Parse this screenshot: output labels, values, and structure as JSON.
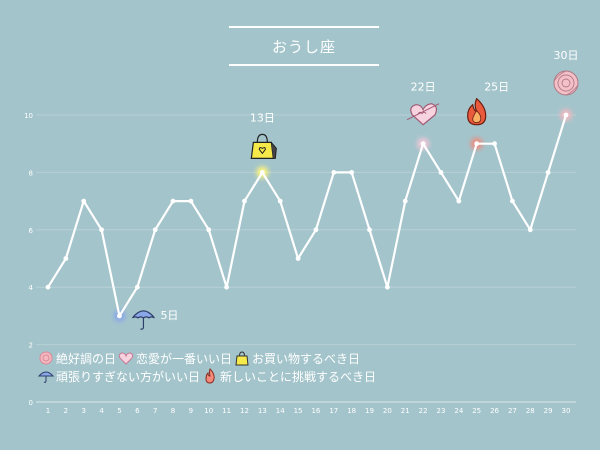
{
  "title": "おうし座",
  "chart_data": {
    "type": "line",
    "x": [
      1,
      2,
      3,
      4,
      5,
      6,
      7,
      8,
      9,
      10,
      11,
      12,
      13,
      14,
      15,
      16,
      17,
      18,
      19,
      20,
      21,
      22,
      23,
      24,
      25,
      26,
      27,
      28,
      29,
      30
    ],
    "values": [
      4,
      5,
      7,
      6,
      3,
      4,
      6,
      7,
      7,
      6,
      4,
      7,
      8,
      7,
      5,
      6,
      8,
      8,
      6,
      4,
      7,
      9,
      8,
      7,
      9,
      9,
      7,
      6,
      8,
      10
    ],
    "xlim": [
      1,
      30
    ],
    "ylim": [
      0,
      10.5
    ],
    "yticks": [
      0,
      2,
      4,
      6,
      8,
      10
    ],
    "grid": true,
    "line_color": "#ffffff",
    "annotations": [
      {
        "day": 5,
        "label": "5日",
        "icon": "umbrella-icon",
        "kind": "rest",
        "color": "#8aa8e8"
      },
      {
        "day": 13,
        "label": "13日",
        "icon": "bag-icon",
        "kind": "shopping",
        "color": "#fff47a"
      },
      {
        "day": 22,
        "label": "22日",
        "icon": "heart-icon",
        "kind": "love",
        "color": "#f4c8d8"
      },
      {
        "day": 25,
        "label": "25日",
        "icon": "fire-icon",
        "kind": "new",
        "color": "#f2897a"
      },
      {
        "day": 30,
        "label": "30日",
        "icon": "flower-icon",
        "kind": "best",
        "color": "#f4b8c0"
      }
    ]
  },
  "legend": {
    "row1": [
      "絶好調の日",
      "恋愛が一番いい日",
      "お買い物するべき日"
    ],
    "row2": [
      "頑張りすぎない方がいい日",
      "新しいことに挑戦するべき日"
    ]
  },
  "colors": {
    "background": "#a3c4cb",
    "rest": "#8aa8e8",
    "shopping": "#fff47a",
    "love": "#f4c8d8",
    "new": "#f2897a",
    "best": "#f4b8c0"
  }
}
